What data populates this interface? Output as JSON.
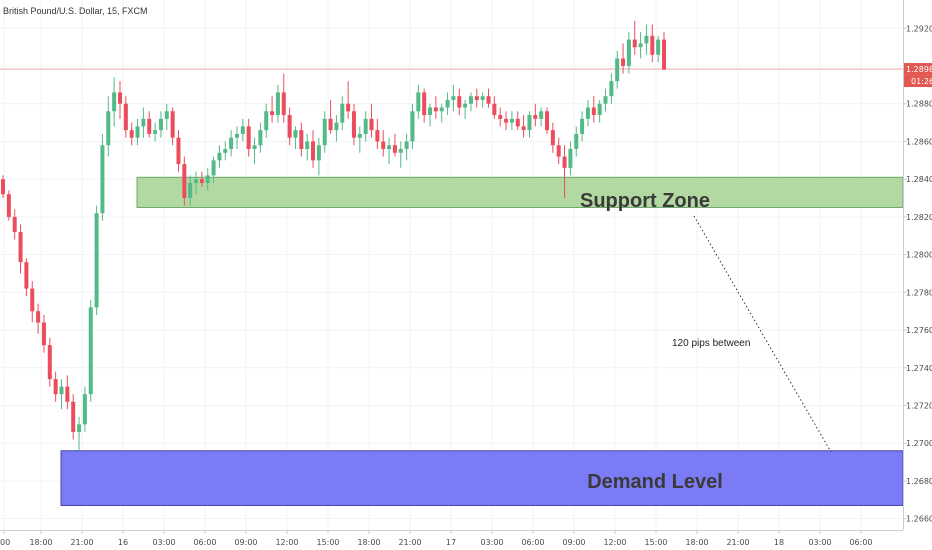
{
  "header": {
    "symbol_title": "British Pound/U.S. Dollar, 15, FXCM"
  },
  "price_axis": {
    "current_price_label": "1.28984",
    "countdown_label": "01:26",
    "badge_color": "#e05a52",
    "tick_color": "#4a4a4a"
  },
  "annotations": {
    "support_zone_label": "Support Zone",
    "demand_level_label": "Demand Level",
    "pips_note": "120 pips between",
    "support_fill": "#b3d9a3",
    "support_border": "#6fa86a",
    "demand_fill": "#7b7bf5",
    "demand_border": "#4444aa"
  },
  "chart_data": {
    "type": "candlestick",
    "title": "British Pound/U.S. Dollar, 15, FXCM",
    "up_color": "#53b987",
    "down_color": "#eb4d5c",
    "y_ticks": [
      "1.29200",
      "1.29000",
      "1.28800",
      "1.28600",
      "1.28400",
      "1.28200",
      "1.28000",
      "1.27800",
      "1.27600",
      "1.27400",
      "1.27200",
      "1.27000",
      "1.26800",
      "1.26600"
    ],
    "y_tick_values": [
      1.292,
      1.29,
      1.288,
      1.286,
      1.284,
      1.282,
      1.28,
      1.278,
      1.276,
      1.274,
      1.272,
      1.27,
      1.268,
      1.266
    ],
    "ylim": [
      1.2654,
      1.2935
    ],
    "x_ticks": [
      "00",
      "18:00",
      "21:00",
      "16",
      "03:00",
      "06:00",
      "09:00",
      "12:00",
      "15:00",
      "18:00",
      "21:00",
      "17",
      "03:00",
      "06:00",
      "09:00",
      "12:00",
      "15:00",
      "18:00",
      "21:00",
      "18",
      "03:00",
      "06:00"
    ],
    "current_price": 1.28984,
    "support_zone": [
      1.2825,
      1.2841
    ],
    "demand_zone": [
      1.2667,
      1.2696
    ],
    "prices": [
      [
        1.284,
        1.2842,
        1.283,
        1.2832
      ],
      [
        1.2832,
        1.2834,
        1.2818,
        1.282
      ],
      [
        1.282,
        1.2824,
        1.2808,
        1.2812
      ],
      [
        1.2812,
        1.2816,
        1.279,
        1.2796
      ],
      [
        1.2796,
        1.2798,
        1.2778,
        1.2782
      ],
      [
        1.2782,
        1.2786,
        1.2764,
        1.277
      ],
      [
        1.277,
        1.2774,
        1.2758,
        1.2764
      ],
      [
        1.2764,
        1.2768,
        1.2748,
        1.2752
      ],
      [
        1.2752,
        1.2756,
        1.273,
        1.2734
      ],
      [
        1.2734,
        1.2738,
        1.2722,
        1.2726
      ],
      [
        1.2726,
        1.2734,
        1.2718,
        1.273
      ],
      [
        1.273,
        1.2736,
        1.2718,
        1.2722
      ],
      [
        1.2722,
        1.2726,
        1.2702,
        1.2706
      ],
      [
        1.2706,
        1.2714,
        1.2696,
        1.271
      ],
      [
        1.271,
        1.273,
        1.2706,
        1.2726
      ],
      [
        1.2726,
        1.2776,
        1.2722,
        1.2772
      ],
      [
        1.2772,
        1.2826,
        1.2768,
        1.2822
      ],
      [
        1.2822,
        1.2864,
        1.2818,
        1.2858
      ],
      [
        1.2858,
        1.2884,
        1.2852,
        1.2876
      ],
      [
        1.2876,
        1.2894,
        1.2868,
        1.2886
      ],
      [
        1.2886,
        1.2892,
        1.2872,
        1.288
      ],
      [
        1.288,
        1.2884,
        1.2862,
        1.2866
      ],
      [
        1.2866,
        1.287,
        1.2858,
        1.2862
      ],
      [
        1.2862,
        1.2872,
        1.2858,
        1.2868
      ],
      [
        1.2868,
        1.2878,
        1.2862,
        1.2872
      ],
      [
        1.2872,
        1.2876,
        1.2862,
        1.2864
      ],
      [
        1.2864,
        1.287,
        1.286,
        1.2866
      ],
      [
        1.2866,
        1.2876,
        1.2862,
        1.2872
      ],
      [
        1.2872,
        1.288,
        1.2866,
        1.2876
      ],
      [
        1.2876,
        1.2878,
        1.2858,
        1.2862
      ],
      [
        1.2862,
        1.2866,
        1.2844,
        1.2848
      ],
      [
        1.2848,
        1.2852,
        1.2826,
        1.283
      ],
      [
        1.283,
        1.2842,
        1.2826,
        1.2838
      ],
      [
        1.2838,
        1.2844,
        1.2832,
        1.284
      ],
      [
        1.284,
        1.2844,
        1.2836,
        1.2838
      ],
      [
        1.2838,
        1.2846,
        1.2834,
        1.2842
      ],
      [
        1.2842,
        1.2852,
        1.2838,
        1.285
      ],
      [
        1.285,
        1.2858,
        1.2846,
        1.2854
      ],
      [
        1.2854,
        1.286,
        1.285,
        1.2856
      ],
      [
        1.2856,
        1.2866,
        1.2852,
        1.2862
      ],
      [
        1.2862,
        1.2868,
        1.2856,
        1.2864
      ],
      [
        1.2864,
        1.2872,
        1.286,
        1.2868
      ],
      [
        1.2868,
        1.2872,
        1.2852,
        1.2856
      ],
      [
        1.2856,
        1.2862,
        1.2848,
        1.2858
      ],
      [
        1.2858,
        1.287,
        1.2854,
        1.2866
      ],
      [
        1.2866,
        1.288,
        1.2862,
        1.2876
      ],
      [
        1.2876,
        1.2884,
        1.287,
        1.2874
      ],
      [
        1.2874,
        1.289,
        1.287,
        1.2886
      ],
      [
        1.2886,
        1.2896,
        1.287,
        1.2874
      ],
      [
        1.2874,
        1.2878,
        1.2858,
        1.2862
      ],
      [
        1.2862,
        1.2868,
        1.2856,
        1.2866
      ],
      [
        1.2866,
        1.287,
        1.2852,
        1.2856
      ],
      [
        1.2856,
        1.2864,
        1.285,
        1.286
      ],
      [
        1.286,
        1.2866,
        1.2846,
        1.285
      ],
      [
        1.285,
        1.2862,
        1.2842,
        1.2858
      ],
      [
        1.2858,
        1.2876,
        1.2854,
        1.2872
      ],
      [
        1.2872,
        1.2882,
        1.2864,
        1.2866
      ],
      [
        1.2866,
        1.2874,
        1.286,
        1.287
      ],
      [
        1.287,
        1.2884,
        1.2866,
        1.288
      ],
      [
        1.288,
        1.2892,
        1.2872,
        1.2876
      ],
      [
        1.2876,
        1.288,
        1.2858,
        1.2862
      ],
      [
        1.2862,
        1.2868,
        1.2854,
        1.2864
      ],
      [
        1.2864,
        1.2876,
        1.286,
        1.2872
      ],
      [
        1.2872,
        1.288,
        1.2862,
        1.2866
      ],
      [
        1.2866,
        1.2872,
        1.2856,
        1.286
      ],
      [
        1.286,
        1.2866,
        1.2852,
        1.2856
      ],
      [
        1.2856,
        1.2862,
        1.2848,
        1.2858
      ],
      [
        1.2858,
        1.2864,
        1.2852,
        1.2854
      ],
      [
        1.2854,
        1.286,
        1.2846,
        1.2856
      ],
      [
        1.2856,
        1.2864,
        1.285,
        1.286
      ],
      [
        1.286,
        1.288,
        1.2856,
        1.2876
      ],
      [
        1.2876,
        1.289,
        1.2872,
        1.2886
      ],
      [
        1.2886,
        1.2888,
        1.287,
        1.2874
      ],
      [
        1.2874,
        1.288,
        1.2868,
        1.2878
      ],
      [
        1.2878,
        1.2884,
        1.2872,
        1.2876
      ],
      [
        1.2876,
        1.288,
        1.287,
        1.2878
      ],
      [
        1.2878,
        1.2886,
        1.2874,
        1.2882
      ],
      [
        1.2882,
        1.289,
        1.2876,
        1.2884
      ],
      [
        1.2884,
        1.2888,
        1.2874,
        1.2878
      ],
      [
        1.2878,
        1.2882,
        1.2872,
        1.288
      ],
      [
        1.288,
        1.2886,
        1.2876,
        1.2884
      ],
      [
        1.2884,
        1.2888,
        1.2878,
        1.2882
      ],
      [
        1.2882,
        1.2886,
        1.2878,
        1.2884
      ],
      [
        1.2884,
        1.2888,
        1.2878,
        1.288
      ],
      [
        1.288,
        1.2884,
        1.2872,
        1.2874
      ],
      [
        1.2874,
        1.2878,
        1.2868,
        1.2872
      ],
      [
        1.2872,
        1.2876,
        1.2866,
        1.287
      ],
      [
        1.287,
        1.2876,
        1.2866,
        1.2872
      ],
      [
        1.2872,
        1.2876,
        1.2866,
        1.2868
      ],
      [
        1.2868,
        1.2874,
        1.2862,
        1.2866
      ],
      [
        1.2866,
        1.2876,
        1.2862,
        1.2874
      ],
      [
        1.2874,
        1.288,
        1.2868,
        1.2872
      ],
      [
        1.2872,
        1.2878,
        1.2868,
        1.2876
      ],
      [
        1.2876,
        1.2878,
        1.2864,
        1.2866
      ],
      [
        1.2866,
        1.287,
        1.2854,
        1.2858
      ],
      [
        1.2858,
        1.2862,
        1.2848,
        1.2852
      ],
      [
        1.2852,
        1.2858,
        1.283,
        1.2846
      ],
      [
        1.2846,
        1.286,
        1.2842,
        1.2856
      ],
      [
        1.2856,
        1.2868,
        1.2852,
        1.2864
      ],
      [
        1.2864,
        1.2876,
        1.286,
        1.2872
      ],
      [
        1.2872,
        1.2882,
        1.2868,
        1.2878
      ],
      [
        1.2878,
        1.2884,
        1.287,
        1.2874
      ],
      [
        1.2874,
        1.2882,
        1.287,
        1.288
      ],
      [
        1.288,
        1.2888,
        1.2876,
        1.2884
      ],
      [
        1.2884,
        1.2896,
        1.288,
        1.2892
      ],
      [
        1.2892,
        1.2908,
        1.2888,
        1.2904
      ],
      [
        1.2904,
        1.2912,
        1.2896,
        1.29
      ],
      [
        1.29,
        1.2918,
        1.2896,
        1.2914
      ],
      [
        1.2914,
        1.2924,
        1.2906,
        1.291
      ],
      [
        1.291,
        1.2918,
        1.2904,
        1.2912
      ],
      [
        1.2912,
        1.2922,
        1.2906,
        1.2916
      ],
      [
        1.2916,
        1.2922,
        1.2902,
        1.2906
      ],
      [
        1.2906,
        1.2916,
        1.2902,
        1.2914
      ],
      [
        1.2914,
        1.2918,
        1.2898,
        1.2898
      ]
    ]
  }
}
